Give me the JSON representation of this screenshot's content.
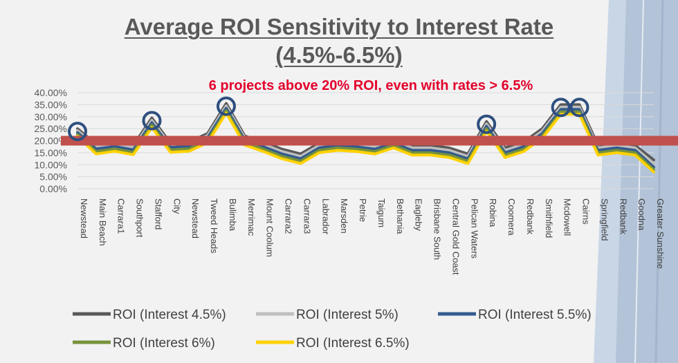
{
  "page": {
    "title_line1": "Average ROI Sensitivity to Interest Rate",
    "title_line2": "(4.5%-6.5%)",
    "callout": "6 projects above 20% ROI, even with rates > 6.5%"
  },
  "colors": {
    "background": "#f2f2f2",
    "title": "#595959",
    "callout": "#e3002b",
    "threshold_bar": "#c0504d",
    "highlight_circle": "#2e4f7f",
    "gridline": "#d9d9d9"
  },
  "chart_data": {
    "type": "line",
    "title": "Average ROI Sensitivity to Interest Rate (4.5%-6.5%)",
    "xlabel": "",
    "ylabel": "",
    "ylim": [
      0,
      0.4
    ],
    "yticks": [
      "0.00%",
      "5.00%",
      "10.00%",
      "15.00%",
      "20.00%",
      "25.00%",
      "30.00%",
      "35.00%",
      "40.00%"
    ],
    "grid": true,
    "legend_position": "bottom",
    "categories": [
      "Newstead",
      "Main Beach",
      "Carrara1",
      "Southport",
      "Stafford",
      "City",
      "Newstead",
      "Tweed Heads",
      "Bulimba",
      "Merrimac",
      "Mount Coolum",
      "Carrara2",
      "Carrara3",
      "Labrador",
      "Marsden",
      "Petrie",
      "Taigum",
      "Bethania",
      "Eagleby",
      "Brisbane South",
      "Central Gold Coast",
      "Pelican Waters",
      "Robina",
      "Coomera",
      "Redbank",
      "Smithfield",
      "Mcdowell",
      "Cairns",
      "Springfield",
      "Redbank",
      "Goodna",
      "Greater Sunshine"
    ],
    "series": [
      {
        "name": "ROI (Interest 4.5%)",
        "color": "#595959",
        "values": [
          0.25,
          0.185,
          0.195,
          0.18,
          0.295,
          0.19,
          0.195,
          0.23,
          0.355,
          0.22,
          0.195,
          0.165,
          0.145,
          0.19,
          0.2,
          0.195,
          0.185,
          0.21,
          0.18,
          0.18,
          0.17,
          0.145,
          0.28,
          0.17,
          0.195,
          0.25,
          0.35,
          0.35,
          0.18,
          0.19,
          0.18,
          0.12
        ]
      },
      {
        "name": "ROI (Interest 5%)",
        "color": "#bfbfbf",
        "values": [
          0.242,
          0.178,
          0.186,
          0.172,
          0.285,
          0.182,
          0.186,
          0.222,
          0.345,
          0.212,
          0.185,
          0.155,
          0.135,
          0.18,
          0.19,
          0.185,
          0.175,
          0.2,
          0.17,
          0.17,
          0.16,
          0.135,
          0.27,
          0.16,
          0.185,
          0.24,
          0.34,
          0.34,
          0.17,
          0.18,
          0.17,
          0.105
        ]
      },
      {
        "name": "ROI (Interest 5.5%)",
        "color": "#335b8e",
        "values": [
          0.234,
          0.166,
          0.176,
          0.162,
          0.275,
          0.172,
          0.176,
          0.212,
          0.335,
          0.202,
          0.175,
          0.145,
          0.125,
          0.17,
          0.18,
          0.175,
          0.165,
          0.19,
          0.16,
          0.16,
          0.15,
          0.125,
          0.26,
          0.15,
          0.175,
          0.23,
          0.33,
          0.33,
          0.16,
          0.17,
          0.16,
          0.09
        ]
      },
      {
        "name": "ROI (Interest 6%)",
        "color": "#77933c",
        "values": [
          0.226,
          0.155,
          0.166,
          0.152,
          0.265,
          0.162,
          0.166,
          0.202,
          0.325,
          0.192,
          0.165,
          0.135,
          0.115,
          0.16,
          0.17,
          0.165,
          0.155,
          0.18,
          0.15,
          0.15,
          0.14,
          0.115,
          0.25,
          0.14,
          0.165,
          0.22,
          0.32,
          0.32,
          0.15,
          0.16,
          0.15,
          0.08
        ]
      },
      {
        "name": "ROI (Interest 6.5%)",
        "color": "#ffd200",
        "values": [
          0.218,
          0.145,
          0.156,
          0.142,
          0.255,
          0.152,
          0.156,
          0.192,
          0.315,
          0.182,
          0.155,
          0.125,
          0.105,
          0.15,
          0.16,
          0.155,
          0.145,
          0.17,
          0.14,
          0.14,
          0.13,
          0.105,
          0.24,
          0.13,
          0.155,
          0.21,
          0.31,
          0.31,
          0.14,
          0.15,
          0.14,
          0.07
        ]
      }
    ],
    "threshold": 0.2,
    "highlighted_categories": [
      0,
      4,
      8,
      22,
      26,
      27
    ]
  }
}
